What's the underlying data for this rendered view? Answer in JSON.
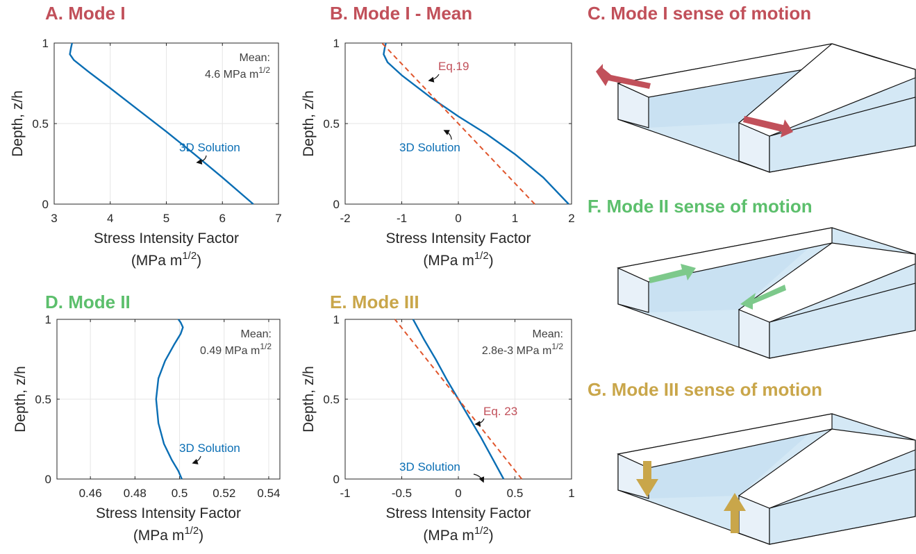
{
  "colors": {
    "mode1": "#c1505a",
    "mode2": "#5cbf6c",
    "mode3": "#c9a64a",
    "solution": "#0a6eb4",
    "equation": "#e0552c",
    "eq_label": "#c1505a"
  },
  "chart_data": [
    {
      "id": "A",
      "type": "line",
      "title": "A. Mode I",
      "xlabel": "Stress Intensity Factor",
      "xunit": "(MPa m^1/2)",
      "ylabel": "Depth, z/h",
      "xlim": [
        3,
        7
      ],
      "ylim": [
        0,
        1
      ],
      "xticks": [
        "3",
        "4",
        "5",
        "6",
        "7"
      ],
      "yticks": [
        "0",
        "0.5",
        "1"
      ],
      "grid": true,
      "annotation": {
        "line1": "Mean:",
        "line2": "4.6 MPa m",
        "sup": "1/2"
      },
      "series": [
        {
          "name": "3D Solution",
          "style": "solid",
          "x": [
            6.55,
            6.0,
            5.5,
            5.0,
            4.5,
            4.0,
            3.6,
            3.35,
            3.28,
            3.3,
            3.32
          ],
          "y": [
            0,
            0.165,
            0.31,
            0.45,
            0.585,
            0.72,
            0.825,
            0.895,
            0.93,
            0.97,
            1.0
          ]
        }
      ]
    },
    {
      "id": "B",
      "type": "line",
      "title": "B. Mode I - Mean",
      "xlabel": "Stress Intensity Factor",
      "xunit": "(MPa m^1/2)",
      "ylabel": "Depth, z/h",
      "xlim": [
        -2,
        2
      ],
      "ylim": [
        0,
        1
      ],
      "xticks": [
        "-2",
        "-1",
        "0",
        "1",
        "2"
      ],
      "yticks": [
        "0",
        "0.5",
        "1"
      ],
      "grid": true,
      "series": [
        {
          "name": "3D Solution",
          "style": "solid",
          "x": [
            1.95,
            1.5,
            1.0,
            0.5,
            0.0,
            -0.5,
            -1.0,
            -1.25,
            -1.32,
            -1.3,
            -1.28
          ],
          "y": [
            0,
            0.165,
            0.31,
            0.435,
            0.545,
            0.665,
            0.8,
            0.88,
            0.93,
            0.97,
            1.0
          ]
        },
        {
          "name": "Eq.19",
          "style": "dashed",
          "x": [
            1.35,
            -1.35
          ],
          "y": [
            0,
            1
          ]
        }
      ]
    },
    {
      "id": "D",
      "type": "line",
      "title": "D. Mode II",
      "xlabel": "Stress Intensity Factor",
      "xunit": "(MPa m^1/2)",
      "ylabel": "Depth, z/h",
      "xlim": [
        0.445,
        0.545
      ],
      "ylim": [
        0,
        1
      ],
      "xticks": [
        "0.46",
        "0.48",
        "0.5",
        "0.52",
        "0.54"
      ],
      "yticks": [
        "0",
        "0.5",
        "1"
      ],
      "grid": true,
      "annotation": {
        "line1": "Mean:",
        "line2": "0.49 MPa m",
        "sup": "1/2"
      },
      "series": [
        {
          "name": "3D Solution",
          "style": "solid",
          "x": [
            0.501,
            0.4995,
            0.4965,
            0.493,
            0.4905,
            0.4895,
            0.4905,
            0.4935,
            0.4975,
            0.5005,
            0.5015,
            0.5005,
            0.4995
          ],
          "y": [
            0,
            0.05,
            0.12,
            0.22,
            0.35,
            0.5,
            0.63,
            0.74,
            0.84,
            0.91,
            0.95,
            0.98,
            1.0
          ]
        }
      ]
    },
    {
      "id": "E",
      "type": "line",
      "title": "E. Mode III",
      "xlabel": "Stress Intensity Factor",
      "xunit": "(MPa m^1/2)",
      "ylabel": "Depth, z/h",
      "xlim": [
        -1,
        1
      ],
      "ylim": [
        0,
        1
      ],
      "xticks": [
        "-1",
        "-0.5",
        "0",
        "0.5",
        "1"
      ],
      "yticks": [
        "0",
        "0.5",
        "1"
      ],
      "grid": true,
      "annotation": {
        "line1": "Mean:",
        "line2": "2.8e-3 MPa m",
        "sup": "1/2"
      },
      "series": [
        {
          "name": "3D Solution",
          "style": "solid",
          "x": [
            0.4,
            0.3,
            0.2,
            0.1,
            0.0,
            -0.1,
            -0.2,
            -0.3,
            -0.4
          ],
          "y": [
            0,
            0.13,
            0.26,
            0.38,
            0.5,
            0.62,
            0.75,
            0.87,
            1.0
          ]
        },
        {
          "name": "Eq. 23",
          "style": "dashed",
          "x": [
            0.56,
            -0.56
          ],
          "y": [
            0,
            1
          ]
        }
      ]
    }
  ],
  "diagrams": [
    {
      "id": "C",
      "title": "C. Mode I  sense of motion"
    },
    {
      "id": "F",
      "title": "F. Mode II  sense of motion"
    },
    {
      "id": "G",
      "title": "G. Mode III  sense of motion"
    }
  ]
}
